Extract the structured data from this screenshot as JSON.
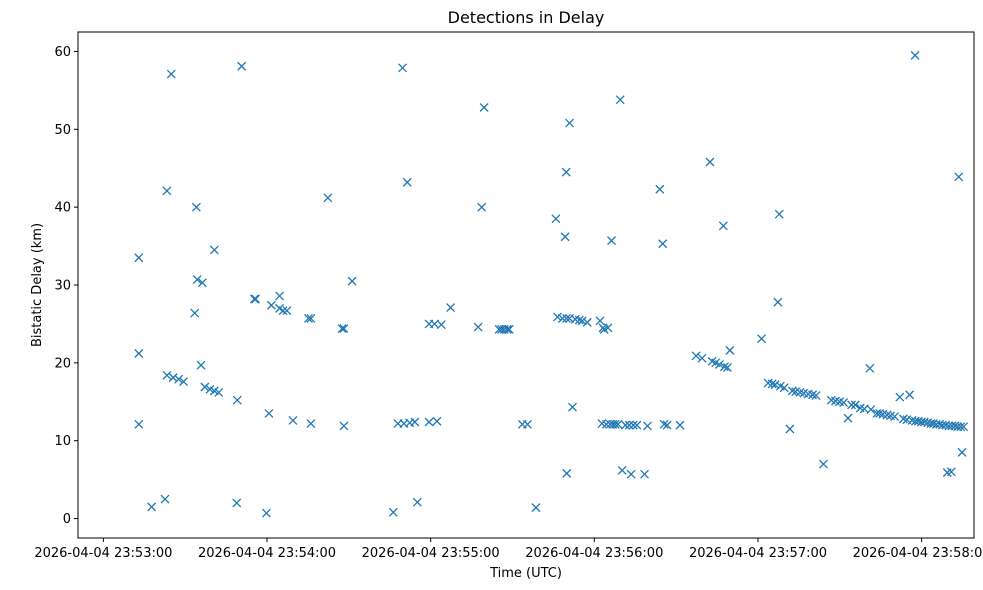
{
  "chart_data": {
    "type": "scatter",
    "title": "Detections in Delay",
    "xlabel": "Time (UTC)",
    "ylabel": "Bistatic Delay (km)",
    "marker": "x",
    "color": "#1f77b4",
    "grid": false,
    "x_start": "2026-04-04 23:53:00",
    "xlim_seconds": [
      -9.3,
      319.2
    ],
    "ylim": [
      -2.5,
      62.5
    ],
    "x_ticks": [
      {
        "label": "2026-04-04 23:53:00",
        "t": 0
      },
      {
        "label": "2026-04-04 23:54:00",
        "t": 60
      },
      {
        "label": "2026-04-04 23:55:00",
        "t": 120
      },
      {
        "label": "2026-04-04 23:56:00",
        "t": 180
      },
      {
        "label": "2026-04-04 23:57:00",
        "t": 240
      },
      {
        "label": "2026-04-04 23:58:00",
        "t": 300
      }
    ],
    "y_ticks": [
      0,
      10,
      20,
      30,
      40,
      50,
      60
    ],
    "points": [
      [
        13,
        33.5
      ],
      [
        13,
        21.2
      ],
      [
        13,
        12.1
      ],
      [
        17.7,
        1.5
      ],
      [
        22.6,
        2.5
      ],
      [
        23.3,
        42.1
      ],
      [
        24.9,
        57.1
      ],
      [
        23.3,
        18.4
      ],
      [
        25.6,
        18.1
      ],
      [
        27.6,
        17.9
      ],
      [
        29.4,
        17.6
      ],
      [
        34.1,
        40.0
      ],
      [
        33.5,
        26.4
      ],
      [
        34.4,
        30.7
      ],
      [
        36.3,
        30.3
      ],
      [
        35.8,
        19.7
      ],
      [
        37.2,
        16.9
      ],
      [
        39.1,
        16.6
      ],
      [
        40.7,
        34.5
      ],
      [
        40.7,
        16.4
      ],
      [
        42.3,
        16.2
      ],
      [
        48.9,
        2.0
      ],
      [
        49.1,
        15.2
      ],
      [
        50.7,
        58.1
      ],
      [
        55.4,
        28.2
      ],
      [
        55.8,
        28.2
      ],
      [
        59.8,
        0.7
      ],
      [
        60.7,
        13.5
      ],
      [
        61.6,
        27.4
      ],
      [
        64.6,
        28.6
      ],
      [
        64.6,
        27.0
      ],
      [
        65.9,
        26.7
      ],
      [
        67.3,
        26.7
      ],
      [
        69.5,
        12.6
      ],
      [
        75.2,
        25.7
      ],
      [
        76.1,
        25.7
      ],
      [
        76.1,
        12.2
      ],
      [
        82.3,
        41.2
      ],
      [
        87.5,
        24.4
      ],
      [
        88.2,
        24.4
      ],
      [
        88.2,
        11.9
      ],
      [
        91.2,
        30.5
      ],
      [
        106.3,
        0.8
      ],
      [
        108.0,
        12.2
      ],
      [
        109.7,
        57.9
      ],
      [
        110.2,
        12.2
      ],
      [
        111.4,
        43.2
      ],
      [
        112.3,
        12.3
      ],
      [
        114.2,
        12.4
      ],
      [
        115.1,
        2.1
      ],
      [
        119.4,
        25.0
      ],
      [
        119.4,
        12.4
      ],
      [
        121.4,
        25.0
      ],
      [
        122.3,
        12.5
      ],
      [
        123.9,
        24.9
      ],
      [
        127.3,
        27.1
      ],
      [
        137.4,
        24.6
      ],
      [
        138.7,
        40.0
      ],
      [
        139.6,
        52.8
      ],
      [
        145.1,
        24.3
      ],
      [
        146.0,
        24.3
      ],
      [
        147.0,
        24.3
      ],
      [
        148.1,
        24.3
      ],
      [
        148.8,
        24.3
      ],
      [
        153.6,
        12.1
      ],
      [
        155.5,
        12.1
      ],
      [
        158.6,
        1.4
      ],
      [
        165.9,
        38.5
      ],
      [
        166.5,
        25.9
      ],
      [
        168.3,
        25.7
      ],
      [
        169.3,
        36.2
      ],
      [
        169.7,
        44.5
      ],
      [
        169.8,
        25.7
      ],
      [
        169.9,
        5.8
      ],
      [
        170.9,
        50.8
      ],
      [
        170.9,
        25.7
      ],
      [
        172.0,
        14.3
      ],
      [
        173.0,
        25.6
      ],
      [
        174.5,
        25.5
      ],
      [
        175.6,
        25.4
      ],
      [
        177.4,
        25.2
      ],
      [
        182.1,
        25.4
      ],
      [
        182.8,
        12.2
      ],
      [
        183.2,
        24.5
      ],
      [
        183.6,
        24.3
      ],
      [
        184.4,
        12.1
      ],
      [
        185.0,
        24.5
      ],
      [
        185.8,
        12.1
      ],
      [
        186.3,
        35.7
      ],
      [
        186.8,
        12.1
      ],
      [
        187.7,
        12.1
      ],
      [
        188.7,
        12.1
      ],
      [
        189.5,
        53.8
      ],
      [
        190.2,
        6.2
      ],
      [
        191.4,
        12.0
      ],
      [
        192.8,
        12.0
      ],
      [
        193.5,
        5.7
      ],
      [
        194.3,
        12.0
      ],
      [
        195.6,
        12.0
      ],
      [
        199.5,
        11.9
      ],
      [
        198.4,
        5.7
      ],
      [
        204.0,
        42.3
      ],
      [
        205.1,
        35.3
      ],
      [
        205.6,
        12.1
      ],
      [
        206.7,
        12.0
      ],
      [
        211.4,
        12.0
      ],
      [
        217.3,
        20.9
      ],
      [
        219.5,
        20.6
      ],
      [
        222.4,
        45.8
      ],
      [
        223.2,
        20.2
      ],
      [
        224.5,
        20.0
      ],
      [
        225.9,
        19.8
      ],
      [
        227.3,
        37.6
      ],
      [
        227.7,
        19.5
      ],
      [
        228.8,
        19.4
      ],
      [
        229.7,
        21.6
      ],
      [
        241.3,
        23.1
      ],
      [
        243.7,
        17.4
      ],
      [
        245.2,
        17.3
      ],
      [
        246.3,
        17.2
      ],
      [
        247.3,
        27.8
      ],
      [
        247.8,
        39.1
      ],
      [
        248.2,
        17.0
      ],
      [
        249.6,
        16.8
      ],
      [
        251.7,
        11.5
      ],
      [
        252.6,
        16.4
      ],
      [
        253.8,
        16.3
      ],
      [
        255.4,
        16.2
      ],
      [
        256.8,
        16.1
      ],
      [
        258.4,
        16.0
      ],
      [
        260.0,
        15.9
      ],
      [
        261.3,
        15.8
      ],
      [
        264.0,
        7.0
      ],
      [
        266.9,
        15.2
      ],
      [
        268.4,
        15.1
      ],
      [
        269.9,
        15.0
      ],
      [
        271.4,
        14.9
      ],
      [
        273.0,
        12.9
      ],
      [
        274.3,
        14.6
      ],
      [
        275.7,
        14.6
      ],
      [
        277.5,
        14.2
      ],
      [
        279.0,
        14.1
      ],
      [
        281.0,
        19.3
      ],
      [
        281.4,
        14.0
      ],
      [
        283.6,
        13.5
      ],
      [
        284.6,
        13.5
      ],
      [
        285.8,
        13.4
      ],
      [
        287.3,
        13.3
      ],
      [
        288.6,
        13.2
      ],
      [
        290.1,
        13.1
      ],
      [
        292.0,
        15.6
      ],
      [
        293.3,
        12.8
      ],
      [
        294.6,
        12.7
      ],
      [
        295.6,
        15.9
      ],
      [
        296.5,
        12.6
      ],
      [
        297.6,
        59.5
      ],
      [
        297.7,
        12.5
      ],
      [
        298.8,
        12.5
      ],
      [
        299.9,
        12.4
      ],
      [
        301.0,
        12.4
      ],
      [
        302.2,
        12.3
      ],
      [
        303.4,
        12.2
      ],
      [
        304.3,
        12.2
      ],
      [
        305.4,
        12.1
      ],
      [
        306.6,
        12.1
      ],
      [
        307.6,
        12.0
      ],
      [
        308.8,
        12.0
      ],
      [
        309.4,
        5.9
      ],
      [
        310.0,
        11.9
      ],
      [
        310.9,
        6.0
      ],
      [
        311.1,
        11.9
      ],
      [
        312.2,
        11.9
      ],
      [
        313.2,
        11.8
      ],
      [
        313.6,
        43.9
      ],
      [
        314.3,
        11.8
      ],
      [
        314.8,
        8.5
      ],
      [
        315.4,
        11.8
      ]
    ]
  }
}
